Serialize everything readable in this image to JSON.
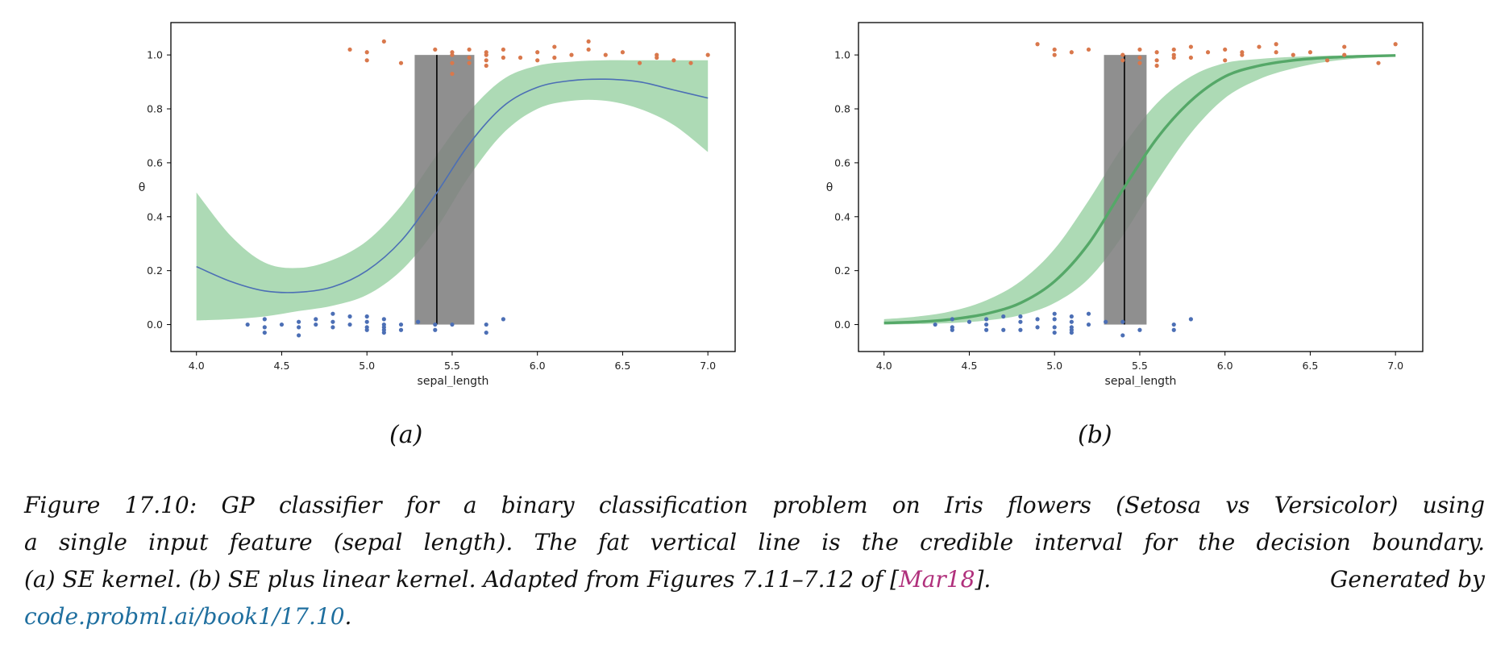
{
  "chart_data": [
    {
      "type": "line",
      "panel": "(a)",
      "xlabel": "sepal_length",
      "ylabel": "θ",
      "xlim": [
        3.85,
        7.16
      ],
      "ylim": [
        -0.1,
        1.12
      ],
      "xticks": [
        "4.0",
        "4.5",
        "5.0",
        "5.5",
        "6.0",
        "6.5",
        "7.0"
      ],
      "yticks": [
        "0.0",
        "0.2",
        "0.4",
        "0.6",
        "0.8",
        "1.0"
      ],
      "grid": false,
      "line_color": "#4c6fb5",
      "band_color": "#9fd3a8",
      "boundary_band": {
        "x": [
          5.28,
          5.63
        ],
        "color": "#808080"
      },
      "boundary_line": 5.41,
      "mean_curve": {
        "x": [
          4.0,
          4.2,
          4.4,
          4.6,
          4.8,
          5.0,
          5.2,
          5.4,
          5.6,
          5.8,
          6.0,
          6.2,
          6.4,
          6.6,
          6.8,
          7.0
        ],
        "y": [
          0.215,
          0.16,
          0.125,
          0.12,
          0.14,
          0.2,
          0.31,
          0.48,
          0.67,
          0.81,
          0.88,
          0.905,
          0.91,
          0.9,
          0.87,
          0.84
        ]
      },
      "upper_band": [
        0.49,
        0.33,
        0.23,
        0.21,
        0.24,
        0.31,
        0.44,
        0.62,
        0.79,
        0.91,
        0.96,
        0.975,
        0.98,
        0.98,
        0.98,
        0.98
      ],
      "lower_band": [
        0.015,
        0.02,
        0.03,
        0.05,
        0.07,
        0.11,
        0.2,
        0.35,
        0.55,
        0.71,
        0.8,
        0.83,
        0.83,
        0.8,
        0.74,
        0.64
      ],
      "class1_points": {
        "color": "#d9784c",
        "x": [
          4.9,
          5.0,
          5.0,
          5.1,
          5.2,
          5.4,
          5.5,
          5.5,
          5.5,
          5.5,
          5.6,
          5.6,
          5.6,
          5.7,
          5.7,
          5.7,
          5.7,
          5.8,
          5.8,
          5.9,
          6.0,
          6.0,
          6.1,
          6.1,
          6.2,
          6.3,
          6.3,
          6.4,
          6.5,
          6.6,
          6.7,
          6.7,
          6.8,
          6.9,
          7.0
        ],
        "y": [
          1.02,
          1.01,
          0.98,
          1.05,
          0.97,
          1.02,
          1.0,
          0.97,
          1.01,
          0.93,
          1.02,
          0.99,
          0.97,
          1.01,
          0.98,
          0.96,
          1.0,
          1.02,
          0.99,
          0.99,
          1.01,
          0.98,
          1.03,
          0.99,
          1.0,
          1.05,
          1.02,
          1.0,
          1.01,
          0.97,
          1.0,
          0.99,
          0.98,
          0.97,
          1.0
        ]
      },
      "class0_points": {
        "color": "#4c6fb5",
        "x": [
          4.3,
          4.4,
          4.4,
          4.4,
          4.5,
          4.6,
          4.6,
          4.6,
          4.7,
          4.7,
          4.8,
          4.8,
          4.8,
          4.9,
          4.9,
          5.0,
          5.0,
          5.0,
          5.0,
          5.1,
          5.1,
          5.1,
          5.1,
          5.1,
          5.2,
          5.2,
          5.3,
          5.4,
          5.4,
          5.5,
          5.7,
          5.7,
          5.8
        ],
        "y": [
          0.0,
          0.02,
          -0.01,
          -0.03,
          0.0,
          0.01,
          -0.01,
          -0.04,
          0.02,
          0.0,
          0.04,
          0.01,
          -0.01,
          0.03,
          0.0,
          0.03,
          0.01,
          -0.01,
          -0.02,
          0.02,
          0.0,
          -0.01,
          -0.02,
          -0.03,
          0.0,
          -0.02,
          0.01,
          0.0,
          -0.02,
          0.0,
          0.0,
          -0.03,
          0.02
        ]
      }
    },
    {
      "type": "line",
      "panel": "(b)",
      "xlabel": "sepal_length",
      "ylabel": "θ",
      "xlim": [
        3.85,
        7.16
      ],
      "ylim": [
        -0.1,
        1.12
      ],
      "xticks": [
        "4.0",
        "4.5",
        "5.0",
        "5.5",
        "6.0",
        "6.5",
        "7.0"
      ],
      "yticks": [
        "0.0",
        "0.2",
        "0.4",
        "0.6",
        "0.8",
        "1.0"
      ],
      "grid": false,
      "line_color": "#55a868",
      "band_color": "#9fd3a8",
      "boundary_band": {
        "x": [
          5.29,
          5.54
        ],
        "color": "#808080"
      },
      "boundary_line": 5.41,
      "mean_curve": {
        "x": [
          4.0,
          4.2,
          4.4,
          4.6,
          4.8,
          5.0,
          5.2,
          5.4,
          5.6,
          5.8,
          6.0,
          6.2,
          6.4,
          6.6,
          6.8,
          7.0
        ],
        "y": [
          0.006,
          0.01,
          0.02,
          0.04,
          0.08,
          0.16,
          0.3,
          0.5,
          0.69,
          0.83,
          0.92,
          0.96,
          0.98,
          0.99,
          0.995,
          0.998
        ]
      },
      "upper_band": [
        0.02,
        0.03,
        0.05,
        0.09,
        0.16,
        0.28,
        0.46,
        0.66,
        0.82,
        0.92,
        0.97,
        0.985,
        0.993,
        0.997,
        0.999,
        1.0
      ],
      "lower_band": [
        0.0,
        0.002,
        0.006,
        0.015,
        0.035,
        0.08,
        0.17,
        0.33,
        0.53,
        0.71,
        0.84,
        0.91,
        0.95,
        0.975,
        0.988,
        0.994
      ],
      "class1_points": {
        "color": "#d9784c",
        "x": [
          4.9,
          5.0,
          5.0,
          5.1,
          5.2,
          5.4,
          5.4,
          5.5,
          5.5,
          5.5,
          5.6,
          5.6,
          5.6,
          5.7,
          5.7,
          5.7,
          5.8,
          5.8,
          5.9,
          6.0,
          6.0,
          6.1,
          6.1,
          6.2,
          6.3,
          6.3,
          6.4,
          6.5,
          6.6,
          6.7,
          6.7,
          6.9,
          7.0
        ],
        "y": [
          1.04,
          1.02,
          1.0,
          1.01,
          1.02,
          0.98,
          1.0,
          1.02,
          0.99,
          0.97,
          1.01,
          0.98,
          0.96,
          1.02,
          0.99,
          1.0,
          1.03,
          0.99,
          1.01,
          1.02,
          0.98,
          1.01,
          1.0,
          1.03,
          1.04,
          1.01,
          1.0,
          1.01,
          0.98,
          1.03,
          1.0,
          0.97,
          1.04
        ]
      },
      "class0_points": {
        "color": "#4c6fb5",
        "x": [
          4.3,
          4.4,
          4.4,
          4.4,
          4.5,
          4.6,
          4.6,
          4.6,
          4.7,
          4.7,
          4.8,
          4.8,
          4.8,
          4.9,
          4.9,
          5.0,
          5.0,
          5.0,
          5.0,
          5.1,
          5.1,
          5.1,
          5.1,
          5.1,
          5.2,
          5.2,
          5.3,
          5.4,
          5.4,
          5.5,
          5.7,
          5.7,
          5.8
        ],
        "y": [
          0.0,
          0.02,
          -0.01,
          -0.02,
          0.01,
          0.02,
          0.0,
          -0.02,
          0.03,
          -0.02,
          0.03,
          0.01,
          -0.02,
          0.02,
          -0.01,
          0.04,
          0.02,
          -0.01,
          -0.03,
          0.03,
          0.01,
          -0.01,
          -0.02,
          -0.03,
          0.04,
          0.0,
          0.01,
          0.01,
          -0.04,
          -0.02,
          0.0,
          -0.02,
          0.02
        ]
      }
    }
  ],
  "labels": {
    "a": "(a)",
    "b": "(b)"
  },
  "caption": {
    "line1": "Figure 17.10: GP classifier for a binary classification problem on Iris flowers (Setosa vs Versicolor) using",
    "line2": "a single input feature (sepal length). The fat vertical line is the credible interval for the decision boundary.",
    "line3_pre": "(a) SE kernel.  (b) SE plus linear kernel.  Adapted from Figures 7.11–7.12 of [",
    "cite": "Mar18",
    "line3_post": "].  Generated by",
    "url": "code.probml.ai/book1/17.10",
    "end": "."
  }
}
